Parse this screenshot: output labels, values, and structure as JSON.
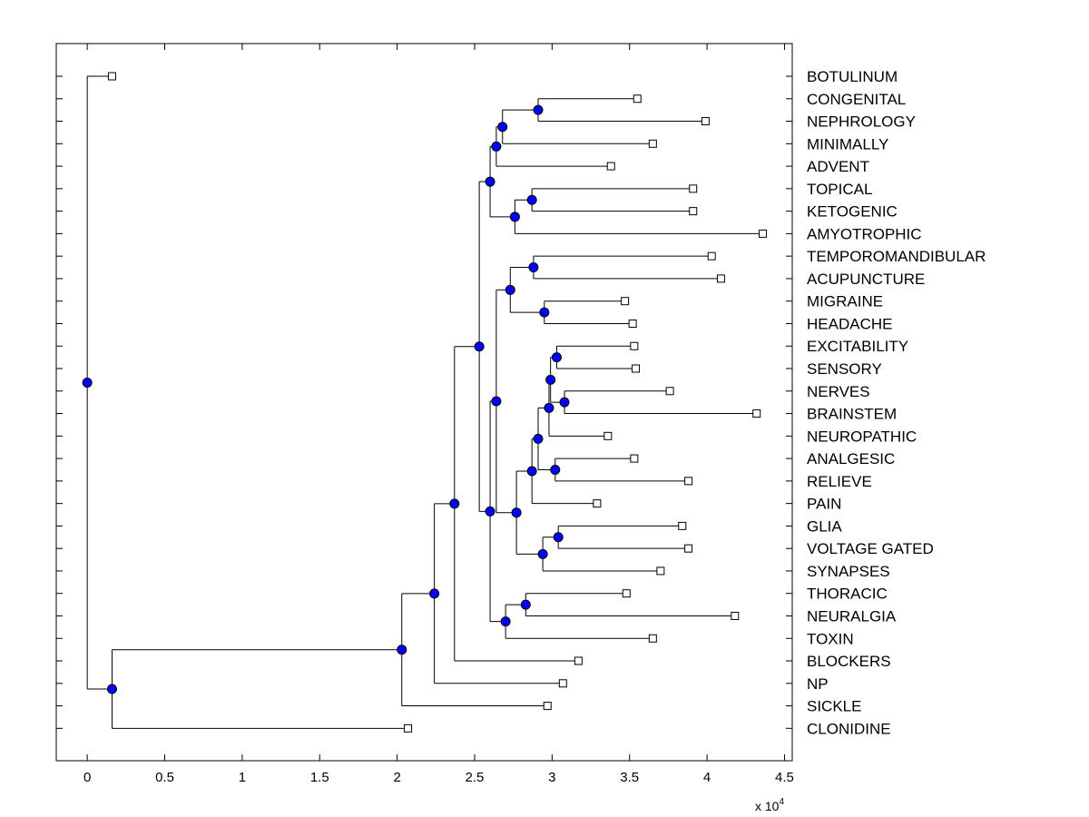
{
  "chart_data": {
    "type": "dendrogram",
    "orientation": "horizontal",
    "xlim": [
      -0.2,
      4.55
    ],
    "xticks": [
      {
        "value": 0,
        "label": "0"
      },
      {
        "value": 0.5,
        "label": "0.5"
      },
      {
        "value": 1,
        "label": "1"
      },
      {
        "value": 1.5,
        "label": "1.5"
      },
      {
        "value": 2,
        "label": "2"
      },
      {
        "value": 2.5,
        "label": "2.5"
      },
      {
        "value": 3,
        "label": "3"
      },
      {
        "value": 3.5,
        "label": "3.5"
      },
      {
        "value": 4,
        "label": "4"
      },
      {
        "value": 4.5,
        "label": "4.5"
      }
    ],
    "x_multiplier_label": "x 10",
    "x_multiplier_exponent": "4",
    "leaves": [
      {
        "label": "BOTULINUM",
        "x": 0.16
      },
      {
        "label": "CONGENITAL",
        "x": 3.55
      },
      {
        "label": "NEPHROLOGY",
        "x": 3.99
      },
      {
        "label": "MINIMALLY",
        "x": 3.65
      },
      {
        "label": "ADVENT",
        "x": 3.38
      },
      {
        "label": "TOPICAL",
        "x": 3.91
      },
      {
        "label": "KETOGENIC",
        "x": 3.91
      },
      {
        "label": "AMYOTROPHIC",
        "x": 4.36
      },
      {
        "label": "TEMPOROMANDIBULAR",
        "x": 4.03
      },
      {
        "label": "ACUPUNCTURE",
        "x": 4.09
      },
      {
        "label": "MIGRAINE",
        "x": 3.47
      },
      {
        "label": "HEADACHE",
        "x": 3.52
      },
      {
        "label": "EXCITABILITY",
        "x": 3.53
      },
      {
        "label": "SENSORY",
        "x": 3.54
      },
      {
        "label": "NERVES",
        "x": 3.76
      },
      {
        "label": "BRAINSTEM",
        "x": 4.32
      },
      {
        "label": "NEUROPATHIC",
        "x": 3.36
      },
      {
        "label": "ANALGESIC",
        "x": 3.53
      },
      {
        "label": "RELIEVE",
        "x": 3.88
      },
      {
        "label": "PAIN",
        "x": 3.29
      },
      {
        "label": "GLIA",
        "x": 3.84
      },
      {
        "label": "VOLTAGE GATED",
        "x": 3.88
      },
      {
        "label": "SYNAPSES",
        "x": 3.7
      },
      {
        "label": "THORACIC",
        "x": 3.48
      },
      {
        "label": "NEURALGIA",
        "x": 4.18
      },
      {
        "label": "TOXIN",
        "x": 3.65
      },
      {
        "label": "BLOCKERS",
        "x": 3.17
      },
      {
        "label": "NP",
        "x": 3.07
      },
      {
        "label": "SICKLE",
        "x": 2.97
      },
      {
        "label": "CLONIDINE",
        "x": 2.07
      }
    ],
    "nodes": [
      {
        "id": "congenital-nephrology",
        "x": 2.91,
        "children": [
          "L1",
          "L2"
        ]
      },
      {
        "id": "cn-minimally",
        "x": 2.68,
        "children": [
          "N:congenital-nephrology",
          "L3"
        ]
      },
      {
        "id": "cnm-advent",
        "x": 2.64,
        "children": [
          "N:cn-minimally",
          "L4"
        ]
      },
      {
        "id": "topical-ketogenic",
        "x": 2.87,
        "children": [
          "L5",
          "L6"
        ]
      },
      {
        "id": "tk-amyotrophic",
        "x": 2.76,
        "children": [
          "N:topical-ketogenic",
          "L7"
        ]
      },
      {
        "id": "upper-group",
        "x": 2.6,
        "children": [
          "N:cnm-advent",
          "N:tk-amyotrophic"
        ]
      },
      {
        "id": "temporo-acupuncture",
        "x": 2.88,
        "children": [
          "L8",
          "L9"
        ]
      },
      {
        "id": "migraine-headache",
        "x": 2.95,
        "children": [
          "L10",
          "L11"
        ]
      },
      {
        "id": "head-group",
        "x": 2.73,
        "children": [
          "N:temporo-acupuncture",
          "N:migraine-headache"
        ]
      },
      {
        "id": "excitability-sensory",
        "x": 3.03,
        "children": [
          "L12",
          "L13"
        ]
      },
      {
        "id": "nerves-brainstem",
        "x": 3.08,
        "children": [
          "L14",
          "L15"
        ]
      },
      {
        "id": "es-nb",
        "x": 2.99,
        "children": [
          "N:excitability-sensory",
          "N:nerves-brainstem"
        ]
      },
      {
        "id": "esnb-neuropathic",
        "x": 2.98,
        "children": [
          "N:es-nb",
          "L16"
        ]
      },
      {
        "id": "analgesic-relieve",
        "x": 3.02,
        "children": [
          "L17",
          "L18"
        ]
      },
      {
        "id": "nerve-analgesic",
        "x": 2.91,
        "children": [
          "N:esnb-neuropathic",
          "N:analgesic-relieve"
        ]
      },
      {
        "id": "na-pain",
        "x": 2.87,
        "children": [
          "N:nerve-analgesic",
          "L19"
        ]
      },
      {
        "id": "glia-voltage",
        "x": 3.04,
        "children": [
          "L20",
          "L21"
        ]
      },
      {
        "id": "gv-synapses",
        "x": 2.94,
        "children": [
          "N:glia-voltage",
          "L22"
        ]
      },
      {
        "id": "pain-glia",
        "x": 2.77,
        "children": [
          "N:na-pain",
          "N:gv-synapses"
        ]
      },
      {
        "id": "head-pain",
        "x": 2.64,
        "children": [
          "N:head-group",
          "N:pain-glia"
        ]
      },
      {
        "id": "thoracic-neuralgia",
        "x": 2.83,
        "children": [
          "L23",
          "L24"
        ]
      },
      {
        "id": "tn-toxin",
        "x": 2.7,
        "children": [
          "N:thoracic-neuralgia",
          "L25"
        ]
      },
      {
        "id": "mid-group",
        "x": 2.6,
        "children": [
          "N:head-pain",
          "N:tn-toxin"
        ]
      },
      {
        "id": "upper-mid",
        "x": 2.53,
        "children": [
          "N:upper-group",
          "N:mid-group"
        ]
      },
      {
        "id": "um-blockers",
        "x": 2.37,
        "children": [
          "N:upper-mid",
          "L26"
        ]
      },
      {
        "id": "umb-np",
        "x": 2.24,
        "children": [
          "N:um-blockers",
          "L27"
        ]
      },
      {
        "id": "umbnp-sickle",
        "x": 2.03,
        "children": [
          "N:umb-np",
          "L28"
        ]
      },
      {
        "id": "big-clonidine",
        "x": 0.16,
        "children": [
          "N:umbnp-sickle",
          "L29"
        ]
      },
      {
        "id": "root",
        "x": 0.0,
        "children": [
          "L0",
          "N:big-clonidine"
        ]
      }
    ],
    "colors": {
      "node_fill": "#0000ff",
      "leaf_fill": "#ffffff",
      "line": "#000000"
    },
    "grid": false
  }
}
